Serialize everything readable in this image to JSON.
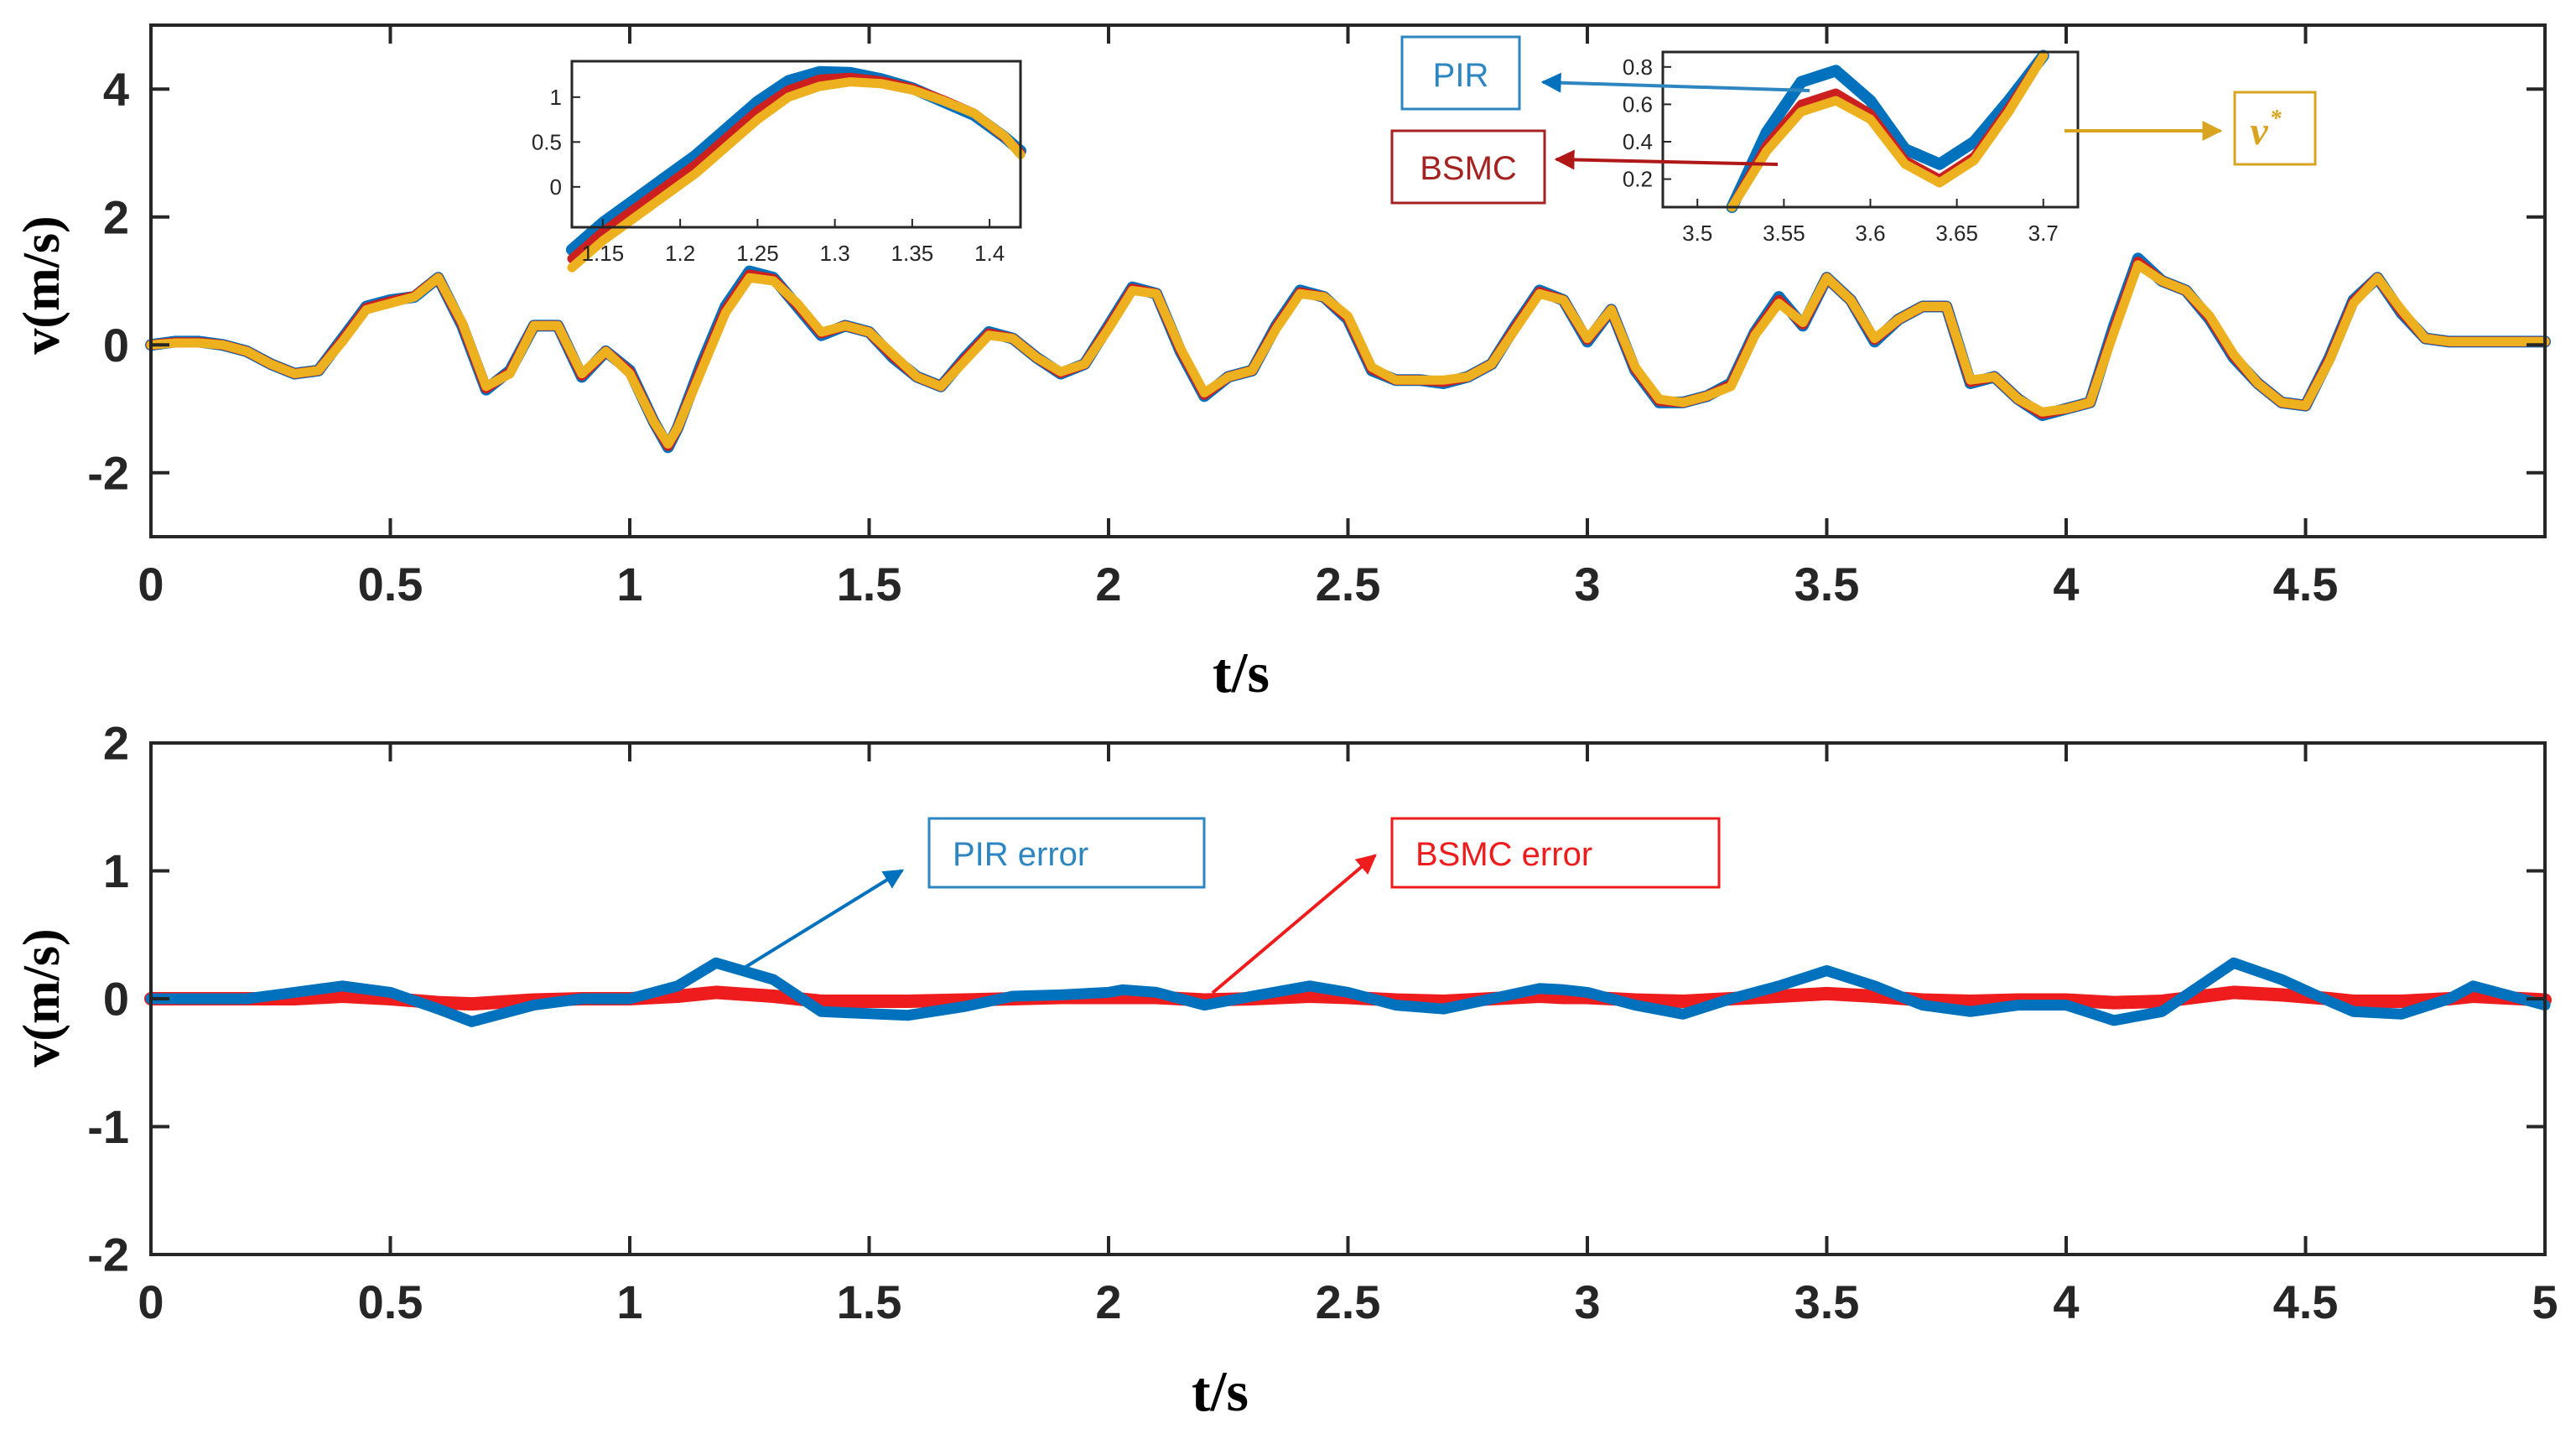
{
  "colors": {
    "pir": "#0072BD",
    "bsmc": "#CC2020",
    "reference": "#EDB120",
    "pir_error": "#0072BD",
    "bsmc_error": "#EE1C1C",
    "axis": "#262626"
  },
  "chart_data": [
    {
      "type": "line",
      "title": "",
      "xlabel": "t/s",
      "ylabel": "v(m/s)",
      "xlim": [
        0,
        5
      ],
      "ylim": [
        -3,
        5
      ],
      "x_ticks": [
        "0",
        "0.5",
        "1",
        "1.5",
        "2",
        "2.5",
        "3",
        "3.5",
        "4",
        "4.5"
      ],
      "y_ticks": [
        "-2",
        "0",
        "2",
        "4"
      ],
      "x": [
        0.0,
        0.05,
        0.1,
        0.15,
        0.2,
        0.25,
        0.3,
        0.35,
        0.4,
        0.45,
        0.5,
        0.55,
        0.6,
        0.65,
        0.7,
        0.75,
        0.8,
        0.85,
        0.9,
        0.95,
        1.0,
        1.05,
        1.08,
        1.1,
        1.15,
        1.2,
        1.25,
        1.3,
        1.35,
        1.4,
        1.45,
        1.5,
        1.55,
        1.6,
        1.65,
        1.7,
        1.75,
        1.8,
        1.85,
        1.9,
        1.95,
        2.0,
        2.05,
        2.1,
        2.15,
        2.2,
        2.25,
        2.3,
        2.35,
        2.4,
        2.45,
        2.5,
        2.55,
        2.6,
        2.65,
        2.7,
        2.75,
        2.8,
        2.85,
        2.9,
        2.95,
        3.0,
        3.05,
        3.1,
        3.15,
        3.2,
        3.25,
        3.3,
        3.35,
        3.4,
        3.45,
        3.5,
        3.55,
        3.6,
        3.65,
        3.7,
        3.75,
        3.8,
        3.85,
        3.9,
        3.95,
        4.0,
        4.05,
        4.1,
        4.15,
        4.2,
        4.25,
        4.3,
        4.35,
        4.4,
        4.45,
        4.5,
        4.55,
        4.6,
        4.65,
        4.7,
        4.75,
        4.8,
        4.85,
        4.9,
        4.95,
        5.0
      ],
      "series": [
        {
          "name": "PIR",
          "color": "#0072BD",
          "values": [
            0.0,
            0.05,
            0.05,
            0.0,
            -0.1,
            -0.3,
            -0.45,
            -0.4,
            0.1,
            0.6,
            0.7,
            0.75,
            1.05,
            0.3,
            -0.7,
            -0.4,
            0.3,
            0.3,
            -0.5,
            -0.1,
            -0.4,
            -1.2,
            -1.6,
            -1.3,
            -0.3,
            0.6,
            1.15,
            1.05,
            0.6,
            0.15,
            0.3,
            0.2,
            -0.2,
            -0.5,
            -0.65,
            -0.2,
            0.2,
            0.1,
            -0.2,
            -0.45,
            -0.3,
            0.3,
            0.9,
            0.8,
            -0.1,
            -0.8,
            -0.5,
            -0.4,
            0.3,
            0.85,
            0.75,
            0.4,
            -0.4,
            -0.55,
            -0.55,
            -0.6,
            -0.5,
            -0.3,
            0.3,
            0.85,
            0.7,
            0.05,
            0.55,
            -0.4,
            -0.9,
            -0.9,
            -0.8,
            -0.6,
            0.2,
            0.75,
            0.3,
            1.05,
            0.7,
            0.05,
            0.4,
            0.6,
            0.6,
            -0.6,
            -0.5,
            -0.85,
            -1.1,
            -1.0,
            -0.9,
            0.3,
            1.35,
            1.0,
            0.85,
            0.4,
            -0.2,
            -0.6,
            -0.9,
            -0.95,
            -0.2,
            0.7,
            1.05,
            0.5,
            0.1,
            0.05,
            0.05,
            0.05,
            0.05,
            0.05
          ]
        },
        {
          "name": "BSMC",
          "color": "#CC2020",
          "values": [
            0.0,
            0.04,
            0.04,
            0.0,
            -0.1,
            -0.3,
            -0.45,
            -0.4,
            0.08,
            0.58,
            0.68,
            0.76,
            1.05,
            0.32,
            -0.68,
            -0.42,
            0.3,
            0.3,
            -0.48,
            -0.1,
            -0.42,
            -1.2,
            -1.58,
            -1.3,
            -0.35,
            0.55,
            1.1,
            1.03,
            0.62,
            0.18,
            0.3,
            0.2,
            -0.18,
            -0.5,
            -0.65,
            -0.22,
            0.18,
            0.1,
            -0.2,
            -0.44,
            -0.3,
            0.28,
            0.88,
            0.8,
            -0.08,
            -0.78,
            -0.5,
            -0.4,
            0.28,
            0.82,
            0.75,
            0.42,
            -0.38,
            -0.55,
            -0.55,
            -0.58,
            -0.5,
            -0.3,
            0.28,
            0.83,
            0.7,
            0.08,
            0.55,
            -0.38,
            -0.88,
            -0.9,
            -0.8,
            -0.62,
            0.18,
            0.7,
            0.32,
            1.05,
            0.7,
            0.08,
            0.4,
            0.6,
            0.6,
            -0.58,
            -0.5,
            -0.85,
            -1.08,
            -1.0,
            -0.9,
            0.25,
            1.3,
            1.0,
            0.85,
            0.42,
            -0.18,
            -0.6,
            -0.9,
            -0.95,
            -0.22,
            0.68,
            1.05,
            0.52,
            0.1,
            0.05,
            0.05,
            0.05,
            0.05,
            0.05
          ]
        },
        {
          "name": "v*",
          "color": "#EDB120",
          "values": [
            0.0,
            0.03,
            0.03,
            0.0,
            -0.1,
            -0.3,
            -0.45,
            -0.4,
            0.05,
            0.55,
            0.65,
            0.75,
            1.05,
            0.35,
            -0.65,
            -0.45,
            0.3,
            0.3,
            -0.45,
            -0.1,
            -0.45,
            -1.2,
            -1.55,
            -1.3,
            -0.4,
            0.5,
            1.05,
            1.0,
            0.65,
            0.2,
            0.3,
            0.2,
            -0.15,
            -0.5,
            -0.65,
            -0.25,
            0.15,
            0.1,
            -0.2,
            -0.42,
            -0.3,
            0.25,
            0.85,
            0.8,
            -0.05,
            -0.75,
            -0.5,
            -0.4,
            0.25,
            0.8,
            0.75,
            0.45,
            -0.35,
            -0.55,
            -0.55,
            -0.55,
            -0.5,
            -0.3,
            0.25,
            0.8,
            0.7,
            0.1,
            0.55,
            -0.35,
            -0.85,
            -0.9,
            -0.8,
            -0.65,
            0.15,
            0.65,
            0.35,
            1.05,
            0.7,
            0.1,
            0.4,
            0.6,
            0.6,
            -0.55,
            -0.5,
            -0.85,
            -1.05,
            -1.0,
            -0.9,
            0.2,
            1.25,
            1.0,
            0.85,
            0.45,
            -0.15,
            -0.6,
            -0.9,
            -0.95,
            -0.25,
            0.65,
            1.05,
            0.55,
            0.1,
            0.05,
            0.05,
            0.05,
            0.05,
            0.05
          ]
        }
      ],
      "annotations": {
        "pir_label": "PIR",
        "bsmc_label": "BSMC",
        "ref_label": "v",
        "ref_superscript": "*"
      },
      "insets": [
        {
          "xlim": [
            1.13,
            1.42
          ],
          "ylim": [
            -0.45,
            1.4
          ],
          "x_ticks": [
            "1.15",
            "1.2",
            "1.25",
            "1.3",
            "1.35",
            "1.4"
          ],
          "y_ticks": [
            "0",
            "0.5",
            "1"
          ],
          "x": [
            1.13,
            1.15,
            1.17,
            1.19,
            1.21,
            1.23,
            1.25,
            1.27,
            1.29,
            1.31,
            1.33,
            1.35,
            1.37,
            1.39,
            1.41,
            1.42
          ],
          "series": [
            {
              "name": "PIR",
              "values": [
                -0.7,
                -0.4,
                -0.15,
                0.1,
                0.35,
                0.65,
                0.95,
                1.18,
                1.28,
                1.27,
                1.2,
                1.1,
                0.95,
                0.8,
                0.55,
                0.4
              ]
            },
            {
              "name": "BSMC",
              "values": [
                -0.8,
                -0.5,
                -0.25,
                0.0,
                0.25,
                0.55,
                0.85,
                1.08,
                1.2,
                1.22,
                1.18,
                1.1,
                0.97,
                0.82,
                0.55,
                0.38
              ]
            },
            {
              "name": "v*",
              "values": [
                -0.9,
                -0.6,
                -0.35,
                -0.1,
                0.15,
                0.45,
                0.75,
                1.0,
                1.12,
                1.17,
                1.15,
                1.08,
                0.96,
                0.82,
                0.56,
                0.36
              ]
            }
          ]
        },
        {
          "xlim": [
            3.48,
            3.72
          ],
          "ylim": [
            0.05,
            0.88
          ],
          "x_ticks": [
            "3.5",
            "3.55",
            "3.6",
            "3.65",
            "3.7"
          ],
          "y_ticks": [
            "0.2",
            "0.4",
            "0.6",
            "0.8"
          ],
          "x": [
            3.52,
            3.54,
            3.56,
            3.58,
            3.6,
            3.62,
            3.64,
            3.66,
            3.68,
            3.7
          ],
          "series": [
            {
              "name": "PIR",
              "values": [
                0.05,
                0.45,
                0.72,
                0.78,
                0.62,
                0.36,
                0.28,
                0.4,
                0.62,
                0.86
              ]
            },
            {
              "name": "BSMC",
              "values": [
                0.05,
                0.38,
                0.6,
                0.66,
                0.55,
                0.3,
                0.2,
                0.32,
                0.58,
                0.86
              ]
            },
            {
              "name": "v*",
              "values": [
                0.05,
                0.35,
                0.56,
                0.62,
                0.52,
                0.28,
                0.18,
                0.3,
                0.56,
                0.86
              ]
            }
          ]
        }
      ]
    },
    {
      "type": "line",
      "title": "",
      "xlabel": "t/s",
      "ylabel": "v(m/s)",
      "xlim": [
        0,
        5
      ],
      "ylim": [
        -2,
        2
      ],
      "x_ticks": [
        "0",
        "0.5",
        "1",
        "1.5",
        "2",
        "2.5",
        "3",
        "3.5",
        "4",
        "4.5",
        "5"
      ],
      "y_ticks": [
        "-2",
        "-1",
        "0",
        "1",
        "2"
      ],
      "x": [
        0.0,
        0.1,
        0.2,
        0.3,
        0.4,
        0.5,
        0.6,
        0.67,
        0.8,
        0.9,
        1.0,
        1.1,
        1.18,
        1.3,
        1.4,
        1.58,
        1.7,
        1.8,
        1.9,
        2.0,
        2.03,
        2.1,
        2.2,
        2.3,
        2.42,
        2.5,
        2.6,
        2.7,
        2.8,
        2.9,
        2.95,
        3.0,
        3.1,
        3.2,
        3.3,
        3.4,
        3.5,
        3.6,
        3.7,
        3.8,
        3.9,
        4.0,
        4.1,
        4.2,
        4.35,
        4.45,
        4.55,
        4.6,
        4.7,
        4.8,
        4.85,
        4.9,
        5.0
      ],
      "series": [
        {
          "name": "PIR error",
          "color": "#0072BD",
          "values": [
            0.0,
            0.0,
            0.0,
            0.05,
            0.1,
            0.05,
            -0.08,
            -0.18,
            -0.05,
            0.0,
            0.0,
            0.1,
            0.28,
            0.15,
            -0.1,
            -0.13,
            -0.06,
            0.02,
            0.03,
            0.05,
            0.07,
            0.05,
            -0.05,
            0.02,
            0.1,
            0.05,
            -0.05,
            -0.08,
            0.0,
            0.08,
            0.07,
            0.05,
            -0.05,
            -0.12,
            0.0,
            0.1,
            0.22,
            0.1,
            -0.05,
            -0.1,
            -0.05,
            -0.05,
            -0.17,
            -0.1,
            0.28,
            0.15,
            -0.02,
            -0.1,
            -0.12,
            0.0,
            0.1,
            0.05,
            -0.05
          ]
        },
        {
          "name": "BSMC error",
          "color": "#EE1C1C",
          "values": [
            0.0,
            0.0,
            0.0,
            0.0,
            0.02,
            0.0,
            -0.03,
            -0.04,
            -0.01,
            0.0,
            0.0,
            0.02,
            0.05,
            0.02,
            -0.02,
            -0.02,
            -0.01,
            0.0,
            0.01,
            0.01,
            0.01,
            0.01,
            -0.01,
            0.0,
            0.02,
            0.01,
            -0.01,
            -0.02,
            0.0,
            0.02,
            0.01,
            0.01,
            -0.01,
            -0.02,
            0.0,
            0.02,
            0.04,
            0.02,
            -0.01,
            -0.02,
            -0.01,
            -0.01,
            -0.03,
            -0.02,
            0.05,
            0.03,
            0.0,
            -0.02,
            -0.02,
            0.0,
            0.02,
            0.01,
            -0.01
          ]
        }
      ],
      "annotations": {
        "pir_error_label": "PIR error",
        "bsmc_error_label": "BSMC error"
      }
    }
  ]
}
